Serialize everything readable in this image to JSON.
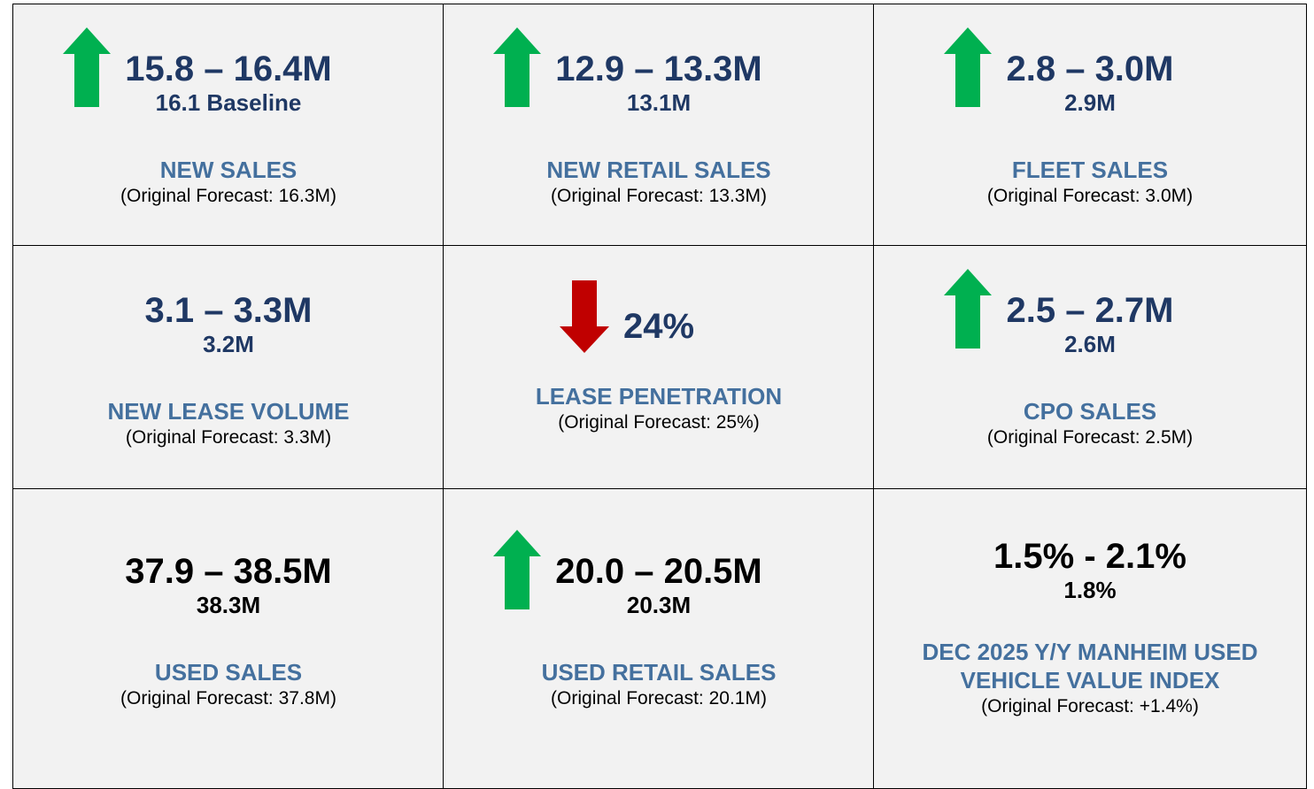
{
  "cells": [
    {
      "range": "15.8 – 16.4M",
      "sub": "16.1 Baseline",
      "label": "NEW SALES",
      "note": "(Original Forecast: 16.3M)"
    },
    {
      "range": "12.9 – 13.3M",
      "sub": "13.1M",
      "label": "NEW RETAIL SALES",
      "note": "(Original Forecast: 13.3M)"
    },
    {
      "range": "2.8 – 3.0M",
      "sub": "2.9M",
      "label": "FLEET SALES",
      "note": "(Original Forecast: 3.0M)"
    },
    {
      "range": "3.1 – 3.3M",
      "sub": "3.2M",
      "label": "NEW LEASE VOLUME",
      "note": "(Original Forecast: 3.3M)"
    },
    {
      "range": "24%",
      "label": "LEASE PENETRATION",
      "note": "(Original Forecast: 25%)"
    },
    {
      "range": "2.5 – 2.7M",
      "sub": "2.6M",
      "label": "CPO SALES",
      "note": "(Original Forecast: 2.5M)"
    },
    {
      "range": "37.9 – 38.5M",
      "sub": "38.3M",
      "label": "USED SALES",
      "note": "(Original Forecast: 37.8M)"
    },
    {
      "range": "20.0 – 20.5M",
      "sub": "20.3M",
      "label": "USED RETAIL SALES",
      "note": "(Original Forecast: 20.1M)"
    },
    {
      "range": "1.5% - 2.1%",
      "sub": "1.8%",
      "label": "DEC 2025 Y/Y MANHEIM USED VEHICLE VALUE INDEX",
      "note": "(Original Forecast: +1.4%)"
    }
  ]
}
